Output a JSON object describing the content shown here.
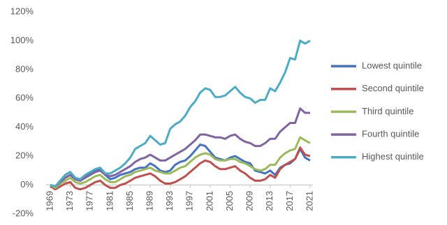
{
  "chart_data": {
    "type": "line",
    "x": [
      1969,
      1970,
      1971,
      1972,
      1973,
      1974,
      1975,
      1976,
      1977,
      1978,
      1979,
      1980,
      1981,
      1982,
      1983,
      1984,
      1985,
      1986,
      1987,
      1988,
      1989,
      1990,
      1991,
      1992,
      1993,
      1994,
      1995,
      1996,
      1997,
      1998,
      1999,
      2000,
      2001,
      2002,
      2003,
      2004,
      2005,
      2006,
      2007,
      2008,
      2009,
      2010,
      2011,
      2012,
      2013,
      2014,
      2015,
      2016,
      2017,
      2018,
      2019,
      2020,
      2021
    ],
    "xlim": [
      1969,
      2021
    ],
    "xticks": [
      1969,
      1973,
      1977,
      1981,
      1985,
      1989,
      1993,
      1997,
      2001,
      2005,
      2009,
      2013,
      2017,
      2021
    ],
    "ylim": [
      -20,
      120
    ],
    "yticks": [
      {
        "value": -20,
        "label": "-20%"
      },
      {
        "value": 0,
        "label": "0%"
      },
      {
        "value": 20,
        "label": "20%"
      },
      {
        "value": 40,
        "label": "40%"
      },
      {
        "value": 60,
        "label": "60%"
      },
      {
        "value": 80,
        "label": "80%"
      },
      {
        "value": 100,
        "label": "100%"
      },
      {
        "value": 120,
        "label": "120%"
      }
    ],
    "grid": false,
    "legend": "right",
    "series": [
      {
        "name": "Lowest quintile",
        "color": "#4472c4",
        "values": [
          0,
          -1,
          3,
          7,
          9,
          4,
          3,
          6,
          8,
          10,
          11,
          7,
          4,
          5,
          7,
          8,
          9,
          11,
          12,
          12,
          15,
          13,
          10,
          9,
          10,
          14,
          16,
          17,
          20,
          24,
          28,
          27,
          23,
          19,
          18,
          17,
          19,
          20,
          18,
          16,
          15,
          10,
          9,
          8,
          10,
          7,
          12,
          14,
          15,
          18,
          25,
          19,
          17
        ]
      },
      {
        "name": "Second quintile",
        "color": "#c0504d",
        "values": [
          -1,
          -3,
          -1,
          1,
          2,
          -2,
          -3,
          -2,
          0,
          2,
          3,
          0,
          -2,
          -2,
          0,
          1,
          3,
          5,
          6,
          7,
          8,
          6,
          3,
          1,
          1,
          2,
          4,
          6,
          9,
          12,
          15,
          17,
          16,
          13,
          11,
          11,
          12,
          13,
          10,
          8,
          5,
          3,
          3,
          4,
          7,
          5,
          11,
          14,
          16,
          18,
          26,
          21,
          20
        ]
      },
      {
        "name": "Third quintile",
        "color": "#9bbb59",
        "values": [
          0,
          -2,
          1,
          3,
          5,
          2,
          1,
          2,
          4,
          6,
          7,
          4,
          2,
          2,
          4,
          6,
          7,
          9,
          10,
          11,
          12,
          10,
          9,
          8,
          8,
          10,
          12,
          13,
          16,
          19,
          21,
          22,
          21,
          18,
          17,
          17,
          18,
          18,
          16,
          15,
          13,
          11,
          10,
          11,
          14,
          14,
          19,
          22,
          24,
          25,
          33,
          31,
          29
        ]
      },
      {
        "name": "Fourth quintile",
        "color": "#8064a2",
        "values": [
          0,
          -1,
          2,
          5,
          7,
          4,
          3,
          5,
          7,
          9,
          10,
          7,
          6,
          7,
          9,
          11,
          13,
          16,
          18,
          19,
          21,
          19,
          17,
          17,
          19,
          21,
          23,
          25,
          28,
          31,
          35,
          35,
          34,
          33,
          33,
          32,
          34,
          35,
          32,
          30,
          29,
          27,
          27,
          29,
          32,
          32,
          37,
          40,
          43,
          43,
          53,
          50,
          50
        ]
      },
      {
        "name": "Highest quintile",
        "color": "#4bacc6",
        "values": [
          0,
          -1,
          3,
          7,
          9,
          5,
          4,
          7,
          9,
          11,
          12,
          8,
          8,
          10,
          12,
          15,
          19,
          25,
          27,
          29,
          34,
          31,
          28,
          29,
          39,
          42,
          44,
          48,
          54,
          58,
          64,
          67,
          66,
          61,
          61,
          62,
          65,
          68,
          64,
          61,
          60,
          57,
          59,
          59,
          67,
          65,
          71,
          78,
          88,
          87,
          100,
          98,
          100
        ]
      }
    ]
  }
}
